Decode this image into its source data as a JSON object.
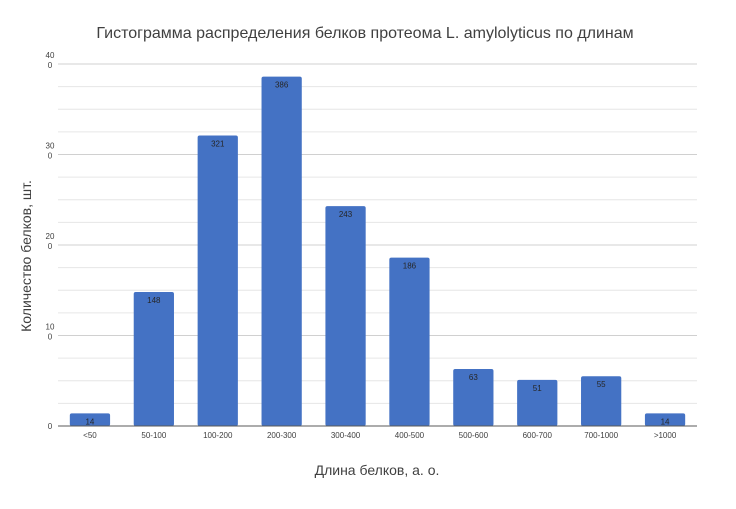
{
  "chart_data": {
    "type": "bar",
    "title": "Гистограмма распределения белков протеома L. amylolyticus по длинам",
    "xlabel": "Длина белков, а. о.",
    "ylabel": "Количество белков, шт.",
    "categories": [
      "<50",
      "50-100",
      "100-200",
      "200-300",
      "300-400",
      "400-500",
      "500-600",
      "600-700",
      "700-1000",
      ">1000"
    ],
    "values": [
      14,
      148,
      321,
      386,
      243,
      186,
      63,
      51,
      55,
      14
    ],
    "data_labels": [
      "14",
      "148",
      "321",
      "386",
      "243",
      "186",
      "63",
      "51",
      "55",
      "14"
    ],
    "y_ticks": [
      {
        "value": 0,
        "line1": "0",
        "line2": ""
      },
      {
        "value": 100,
        "line1": "10",
        "line2": "0"
      },
      {
        "value": 200,
        "line1": "20",
        "line2": "0"
      },
      {
        "value": 300,
        "line1": "30",
        "line2": "0"
      },
      {
        "value": 400,
        "line1": "40",
        "line2": "0"
      }
    ],
    "ylim": [
      0,
      400
    ],
    "minor_grid_step": 25,
    "grid": true,
    "bar_color": "#4472C4",
    "legend": "none"
  }
}
